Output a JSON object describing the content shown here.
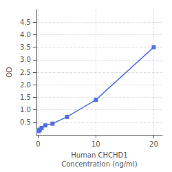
{
  "chart_data": {
    "type": "line",
    "xlabel": "Human CHCHD1\nConcentration (ng/ml)",
    "ylabel": "OD",
    "x": [
      0.078,
      0.156,
      0.313,
      0.625,
      1.25,
      2.5,
      5,
      10,
      20
    ],
    "values": [
      0.152,
      0.185,
      0.21,
      0.28,
      0.38,
      0.45,
      0.72,
      1.4,
      3.5
    ],
    "xlim": [
      -0.3,
      21.5
    ],
    "xticks": [
      0,
      10,
      20
    ],
    "ylim": [
      0,
      5.0
    ],
    "yticks": [
      0.5,
      {
        "value": 1.0,
        "label": "1.0"
      },
      1.5,
      {
        "value": 2.0,
        "label": "2.0"
      },
      2.5,
      {
        "value": 3.0,
        "label": "3.0"
      },
      3.5,
      {
        "value": 4.0,
        "label": "4.0"
      },
      4.5
    ],
    "marker": "square",
    "grid": true
  }
}
